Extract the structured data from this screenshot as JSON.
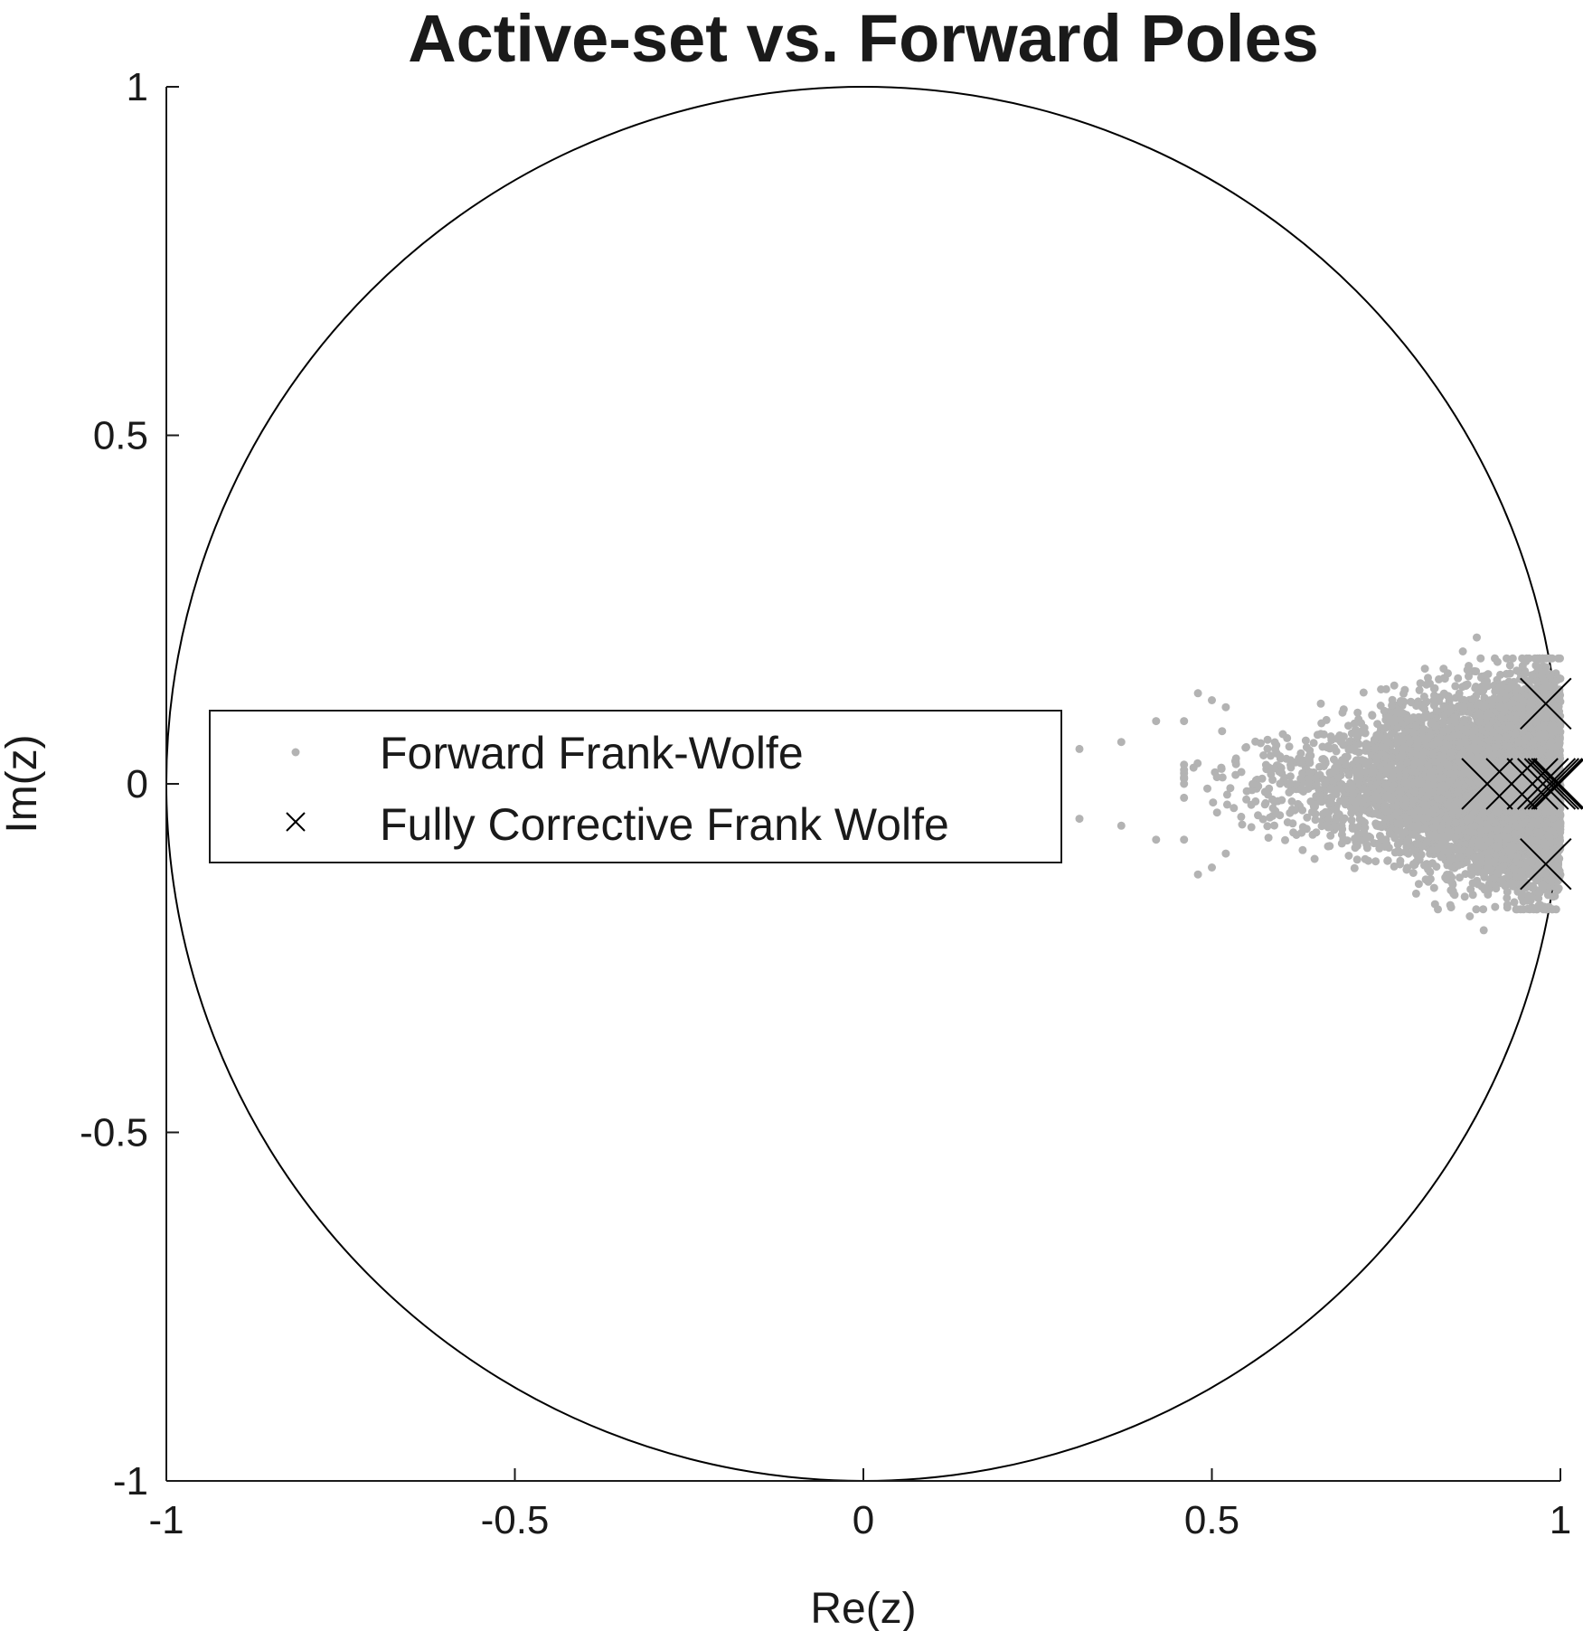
{
  "chart_data": {
    "type": "scatter",
    "title": "Active-set vs. Forward Poles",
    "xlabel": "Re(z)",
    "ylabel": "Im(z)",
    "xlim": [
      -1,
      1
    ],
    "ylim": [
      -1,
      1
    ],
    "xticks": [
      -1,
      -0.5,
      0,
      0.5,
      1
    ],
    "yticks": [
      -1,
      -0.5,
      0,
      0.5,
      1
    ],
    "xtick_labels": [
      "-1",
      "-0.5",
      "0",
      "0.5",
      "1"
    ],
    "ytick_labels": [
      "-1",
      "-0.5",
      "0",
      "0.5",
      "1"
    ],
    "grid": false,
    "unit_circle": true,
    "legend_position": "middle-left",
    "series": [
      {
        "name": "Forward Frank-Wolfe",
        "marker": "dot",
        "color": "#b3b3b3",
        "description": "dense cloud of poles centered near real axis, Re(z) from about 0.31 to 1.0, |Im(z)| up to about 0.21",
        "points": [
          [
            0.31,
            0.05
          ],
          [
            0.31,
            -0.05
          ],
          [
            0.37,
            0.06
          ],
          [
            0.37,
            -0.06
          ],
          [
            0.42,
            0.09
          ],
          [
            0.42,
            -0.08
          ],
          [
            0.46,
            0.09
          ],
          [
            0.46,
            -0.08
          ],
          [
            0.46,
            0.02
          ],
          [
            0.46,
            -0.02
          ],
          [
            0.46,
            0.0
          ],
          [
            0.48,
            0.13
          ],
          [
            0.48,
            -0.13
          ],
          [
            0.5,
            0.12
          ],
          [
            0.5,
            -0.12
          ],
          [
            0.52,
            0.11
          ],
          [
            0.52,
            -0.1
          ],
          [
            0.88,
            0.21
          ],
          [
            0.89,
            -0.21
          ],
          [
            0.86,
            0.19
          ],
          [
            0.87,
            -0.19
          ]
        ],
        "cloud": {
          "x_min": 0.46,
          "x_max": 1.0,
          "x_mode": 0.88,
          "imag_max": 0.18,
          "count": 7000
        }
      },
      {
        "name": "Fully Corrective Frank Wolfe",
        "marker": "x",
        "color": "#000000",
        "points": [
          [
            0.979,
            0.115
          ],
          [
            0.979,
            -0.115
          ],
          [
            0.895,
            0.0
          ],
          [
            0.93,
            0.0
          ],
          [
            0.96,
            0.0
          ],
          [
            0.975,
            0.0
          ],
          [
            0.985,
            0.0
          ],
          [
            0.99,
            0.0
          ],
          [
            0.995,
            0.0
          ],
          [
            0.998,
            0.0
          ]
        ]
      }
    ]
  },
  "colors": {
    "axis": "#1a1a1a",
    "forward": "#b3b3b3",
    "corrective": "#000000"
  }
}
